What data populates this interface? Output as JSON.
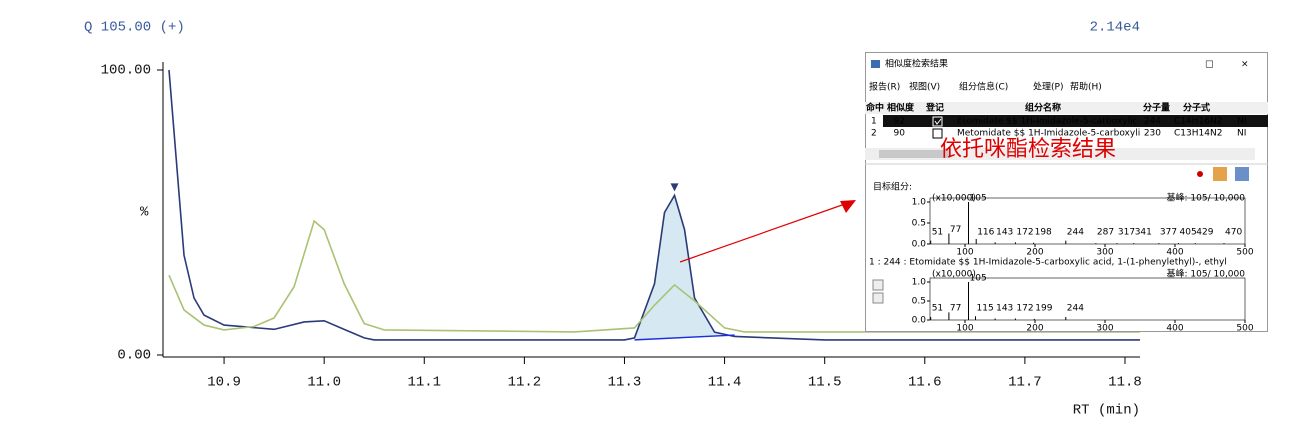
{
  "header": {
    "left": "Q 105.00 (+)",
    "right": "2.14e4"
  },
  "chart_data": {
    "type": "line",
    "x_label": "RT (min)",
    "y_label": "%",
    "xlim": [
      10.839,
      11.815
    ],
    "xticks": [
      10.9,
      {
        "value": 11,
        "label": "11.0"
      },
      11.1,
      11.2,
      11.3,
      11.4,
      11.5,
      11.6,
      11.7,
      11.8
    ],
    "ylim": [
      0,
      100
    ],
    "yticks": [
      {
        "value": 0,
        "label": "0.00"
      },
      {
        "value": 100,
        "label": "100.00"
      }
    ],
    "series": [
      {
        "color": "#2b3a78",
        "x": [
          10.845,
          10.86,
          10.87,
          10.88,
          10.9,
          10.95,
          10.98,
          11.0,
          11.02,
          11.04,
          11.05,
          11.3,
          11.31,
          11.33,
          11.34,
          11.35,
          11.36,
          11.37,
          11.39,
          11.41,
          11.5,
          11.815
        ],
        "values": [
          100,
          35,
          20,
          14,
          10.5,
          9,
          11.6,
          12,
          9,
          6,
          5.3,
          5.3,
          6,
          25,
          50,
          56,
          44,
          20,
          8,
          6.5,
          5.3,
          5.3
        ]
      },
      {
        "color": "#a9c274",
        "x": [
          10.845,
          10.86,
          10.88,
          10.9,
          10.93,
          10.95,
          10.97,
          10.99,
          11.0,
          11.02,
          11.04,
          11.06,
          11.25,
          11.31,
          11.33,
          11.35,
          11.37,
          11.4,
          11.42,
          11.815
        ],
        "values": [
          28,
          15.8,
          10.5,
          8.8,
          10,
          13,
          24,
          47,
          44,
          25,
          11,
          8.8,
          8.1,
          9.5,
          17.5,
          24.6,
          19,
          9.5,
          8.1,
          8.1
        ]
      }
    ],
    "peak": {
      "x": [
        11.31,
        11.41
      ],
      "baseline": [
        5.3,
        7
      ],
      "apex_x": 11.35,
      "fill": "#d6e9f2"
    },
    "annotation": "依托咪酯检索结果"
  },
  "dialog": {
    "title": "相似度检索结果",
    "menu": [
      "报告(R)",
      "视图(V)",
      "组分信息(C)",
      "处理(P)",
      "帮助(H)"
    ],
    "columns": [
      "命中",
      "相似度",
      "登记",
      "组分名称",
      "分子量",
      "分子式"
    ],
    "rows": [
      [
        "1",
        "92",
        "Etomidate $$ 1H-Imidazole-5-carboxylic",
        "244",
        "C14H16N2",
        "NI"
      ],
      [
        "2",
        "90",
        "Metomidate $$ 1H-Imidazole-5-carboxyli",
        "230",
        "C13H14N2",
        "NI"
      ]
    ],
    "target_label": "目标组分:",
    "hit_line": "1 : 244 : Etomidate $$ 1H-Imidazole-5-carboxylic acid, 1-(1-phenylethyl)-, ethyl",
    "spectra": [
      {
        "scale": "(x10,000)",
        "base_peak": "基峰: 105/ 10,000",
        "xlim": [
          50,
          500
        ],
        "xticks": [
          100,
          200,
          300,
          400,
          500
        ],
        "ylim": [
          0,
          1
        ],
        "yticks": [
          {
            "value": 0,
            "label": "0.0"
          },
          {
            "value": 0.5,
            "label": "0.5"
          },
          {
            "value": 1,
            "label": "1.0"
          }
        ],
        "mz": [
          51,
          77,
          105,
          116,
          143,
          172,
          198,
          244,
          287,
          317,
          341,
          377,
          405,
          429,
          470
        ],
        "intensity": [
          0.08,
          0.25,
          1.0,
          0.12,
          0.04,
          0.04,
          0.03,
          0.08,
          0.02,
          0.02,
          0.02,
          0.02,
          0.02,
          0.02,
          0.02
        ]
      },
      {
        "scale": "(x10,000)",
        "base_peak": "基峰: 105/ 10,000",
        "xlim": [
          50,
          500
        ],
        "xticks": [
          100,
          200,
          300,
          400,
          500
        ],
        "ylim": [
          0,
          1
        ],
        "yticks": [
          {
            "value": 0,
            "label": "0.0"
          },
          {
            "value": 0.5,
            "label": "0.5"
          },
          {
            "value": 1,
            "label": "1.0"
          }
        ],
        "mz": [
          51,
          77,
          105,
          115,
          143,
          172,
          199,
          244
        ],
        "intensity": [
          0.08,
          0.2,
          1.0,
          0.1,
          0.04,
          0.04,
          0.03,
          0.08
        ]
      }
    ]
  }
}
